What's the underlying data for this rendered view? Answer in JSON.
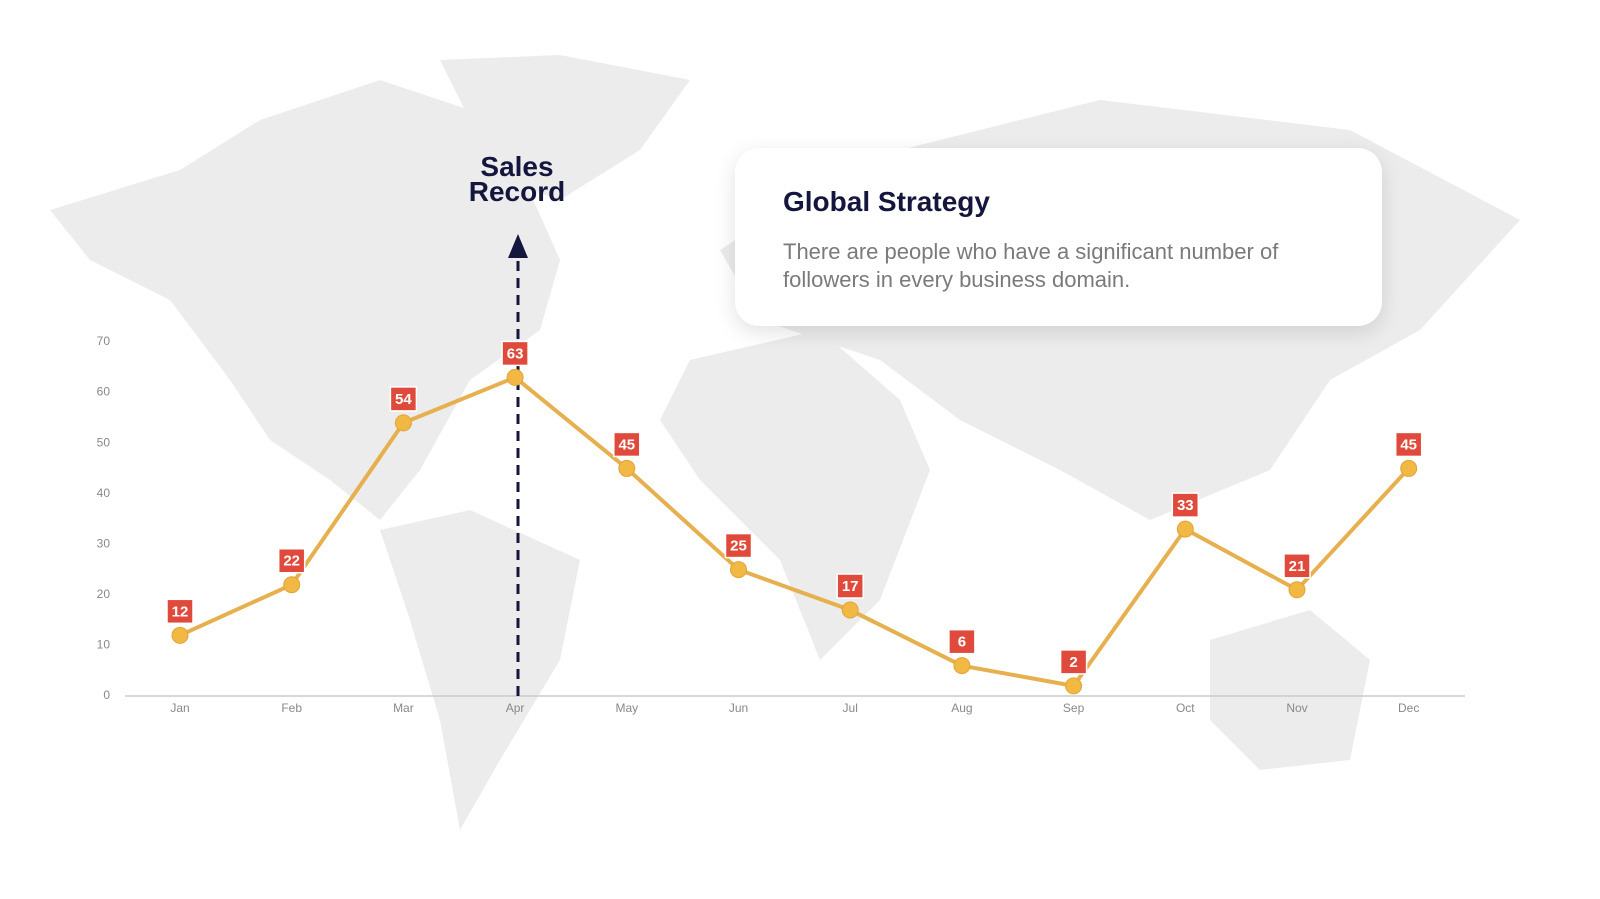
{
  "chart_data": {
    "type": "line",
    "annotation": "Sales Record",
    "categories": [
      "Jan",
      "Feb",
      "Mar",
      "Apr",
      "May",
      "Jun",
      "Jul",
      "Aug",
      "Sep",
      "Oct",
      "Nov",
      "Dec"
    ],
    "values": [
      12,
      22,
      54,
      63,
      45,
      25,
      17,
      6,
      2,
      33,
      21,
      45
    ],
    "color": "#e6b04e",
    "label_color": "#e04a3c",
    "ylim": [
      0,
      70
    ],
    "yticks": [
      0,
      10,
      20,
      30,
      40,
      50,
      60,
      70
    ],
    "grid": false
  },
  "card": {
    "title": "Global Strategy",
    "text": "There are people who have a significant number of followers in every business domain."
  }
}
